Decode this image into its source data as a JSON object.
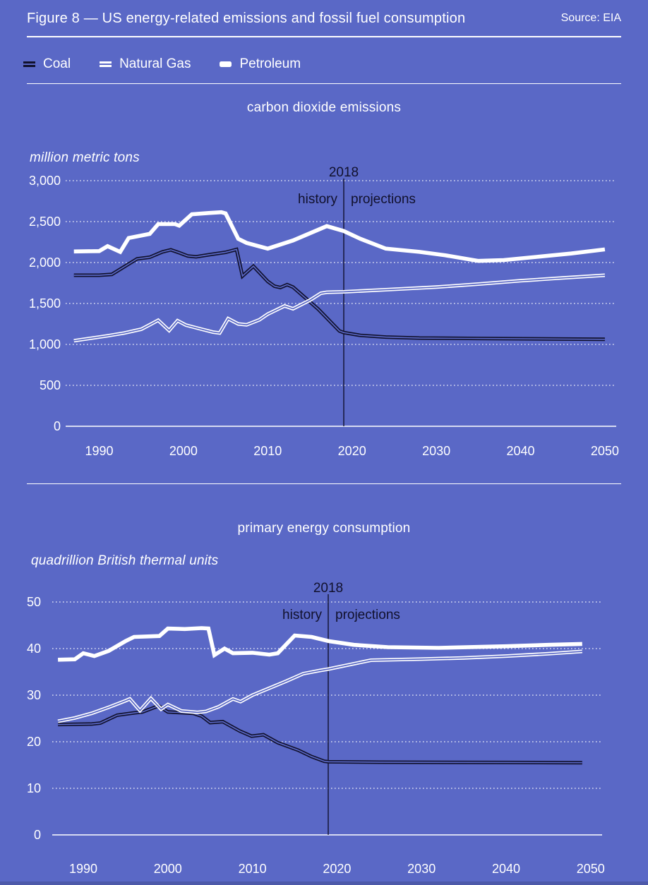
{
  "header": {
    "title": "Figure 8 — US energy-related emissions and fossil fuel consumption",
    "source": "Source: EIA"
  },
  "legend": {
    "items": [
      {
        "label": "Coal",
        "style": "dark-double-line"
      },
      {
        "label": "Natural Gas",
        "style": "white-double-line"
      },
      {
        "label": "Petroleum",
        "style": "white-thick-line"
      }
    ]
  },
  "colors": {
    "background": "#5a68c6",
    "dark_navy": "#11112d",
    "white": "#ffffff",
    "bottom_band": "#4d59a9"
  },
  "annotations": {
    "divider_year_label": "2018",
    "history_label": "history",
    "projections_label": "projections",
    "divider_year_position": 2019
  },
  "chart_data": [
    {
      "type": "line",
      "title": "carbon dioxide emissions",
      "unit_label": "million metric tons",
      "ylim": [
        0,
        3000
      ],
      "yticks": [
        {
          "v": 0,
          "label": "0"
        },
        {
          "v": 500,
          "label": "500"
        },
        {
          "v": 1000,
          "label": "1,000"
        },
        {
          "v": 1500,
          "label": "1,500"
        },
        {
          "v": 2000,
          "label": "2,000"
        },
        {
          "v": 2500,
          "label": "2,500"
        },
        {
          "v": 3000,
          "label": "3,000"
        }
      ],
      "xticks": [
        1990,
        2000,
        2010,
        2020,
        2030,
        2040,
        2050
      ],
      "xrange": [
        1987,
        2050
      ],
      "grid": "dotted",
      "legend_position": "top-of-figure",
      "series": [
        {
          "name": "Coal",
          "style": "dark-double-line",
          "points": [
            [
              1987,
              1845
            ],
            [
              1990,
              1845
            ],
            [
              1991.5,
              1855
            ],
            [
              1993,
              1950
            ],
            [
              1994.5,
              2045
            ],
            [
              1996,
              2065
            ],
            [
              1997.5,
              2130
            ],
            [
              1998.5,
              2155
            ],
            [
              1999.5,
              2120
            ],
            [
              2000.5,
              2080
            ],
            [
              2001.5,
              2070
            ],
            [
              2003,
              2095
            ],
            [
              2005,
              2125
            ],
            [
              2006.3,
              2160
            ],
            [
              2007,
              1835
            ],
            [
              2008.3,
              1955
            ],
            [
              2010,
              1770
            ],
            [
              2010.8,
              1710
            ],
            [
              2011.5,
              1695
            ],
            [
              2012.3,
              1730
            ],
            [
              2013,
              1700
            ],
            [
              2016,
              1430
            ],
            [
              2018.5,
              1165
            ],
            [
              2019,
              1145
            ],
            [
              2021,
              1110
            ],
            [
              2024,
              1090
            ],
            [
              2028,
              1078
            ],
            [
              2035,
              1072
            ],
            [
              2050,
              1062
            ]
          ]
        },
        {
          "name": "Natural Gas",
          "style": "white-double-line",
          "points": [
            [
              1987,
              1045
            ],
            [
              1989,
              1075
            ],
            [
              1991,
              1105
            ],
            [
              1993,
              1140
            ],
            [
              1995,
              1185
            ],
            [
              1996,
              1240
            ],
            [
              1997,
              1295
            ],
            [
              1998.3,
              1170
            ],
            [
              1999.3,
              1290
            ],
            [
              2000.3,
              1235
            ],
            [
              2002,
              1190
            ],
            [
              2003.5,
              1150
            ],
            [
              2004.3,
              1140
            ],
            [
              2005.3,
              1315
            ],
            [
              2006.5,
              1250
            ],
            [
              2007.5,
              1240
            ],
            [
              2009,
              1300
            ],
            [
              2010,
              1370
            ],
            [
              2012,
              1470
            ],
            [
              2013,
              1435
            ],
            [
              2015,
              1540
            ],
            [
              2016.3,
              1625
            ],
            [
              2017,
              1637
            ],
            [
              2019,
              1642
            ],
            [
              2024,
              1668
            ],
            [
              2030,
              1700
            ],
            [
              2035,
              1737
            ],
            [
              2040,
              1778
            ],
            [
              2045,
              1812
            ],
            [
              2050,
              1845
            ]
          ]
        },
        {
          "name": "Petroleum",
          "style": "white-thick-line",
          "points": [
            [
              1987,
              2135
            ],
            [
              1990,
              2140
            ],
            [
              1991,
              2200
            ],
            [
              1992.5,
              2130
            ],
            [
              1993.5,
              2300
            ],
            [
              1995,
              2330
            ],
            [
              1996,
              2350
            ],
            [
              1997,
              2470
            ],
            [
              1999,
              2470
            ],
            [
              1999.5,
              2450
            ],
            [
              2001,
              2590
            ],
            [
              2003,
              2605
            ],
            [
              2004.5,
              2615
            ],
            [
              2005,
              2600
            ],
            [
              2006.5,
              2290
            ],
            [
              2007.5,
              2240
            ],
            [
              2010,
              2170
            ],
            [
              2013,
              2270
            ],
            [
              2017,
              2445
            ],
            [
              2019,
              2385
            ],
            [
              2021,
              2290
            ],
            [
              2024,
              2170
            ],
            [
              2028,
              2130
            ],
            [
              2031,
              2090
            ],
            [
              2035,
              2020
            ],
            [
              2038,
              2030
            ],
            [
              2042,
              2070
            ],
            [
              2046,
              2110
            ],
            [
              2050,
              2160
            ]
          ]
        }
      ]
    },
    {
      "type": "line",
      "title": "primary energy consumption",
      "unit_label": "quadrillion British thermal units",
      "ylim": [
        0,
        50
      ],
      "yticks": [
        {
          "v": 0,
          "label": "0"
        },
        {
          "v": 10,
          "label": "10"
        },
        {
          "v": 20,
          "label": "20"
        },
        {
          "v": 30,
          "label": "30"
        },
        {
          "v": 40,
          "label": "40"
        },
        {
          "v": 50,
          "label": "50"
        }
      ],
      "xticks": [
        1990,
        2000,
        2010,
        2020,
        2030,
        2040,
        2050
      ],
      "xrange": [
        1987,
        2049
      ],
      "grid": "dotted",
      "legend_position": "top-of-figure",
      "series": [
        {
          "name": "Coal",
          "style": "dark-double-line",
          "points": [
            [
              1987,
              23.7
            ],
            [
              1991,
              23.8
            ],
            [
              1992,
              24.0
            ],
            [
              1994,
              25.7
            ],
            [
              1996,
              26.2
            ],
            [
              1997,
              26.4
            ],
            [
              1998.9,
              27.7
            ],
            [
              2000,
              26.4
            ],
            [
              2003,
              26.1
            ],
            [
              2004,
              25.5
            ],
            [
              2005,
              24.1
            ],
            [
              2006.5,
              24.3
            ],
            [
              2008.5,
              22.3
            ],
            [
              2009.9,
              21.2
            ],
            [
              2011.3,
              21.5
            ],
            [
              2013,
              19.8
            ],
            [
              2015.4,
              18.2
            ],
            [
              2017,
              16.8
            ],
            [
              2018.5,
              15.8
            ],
            [
              2019,
              15.7
            ],
            [
              2025,
              15.6
            ],
            [
              2040,
              15.55
            ],
            [
              2049,
              15.5
            ]
          ]
        },
        {
          "name": "Natural Gas",
          "style": "white-double-line",
          "points": [
            [
              1987,
              24.4
            ],
            [
              1989,
              25.1
            ],
            [
              1991,
              26.1
            ],
            [
              1993,
              27.4
            ],
            [
              1995,
              28.8
            ],
            [
              1995.5,
              29.2
            ],
            [
              1996.7,
              26.7
            ],
            [
              1998,
              29.3
            ],
            [
              1999.2,
              27.0
            ],
            [
              2000,
              28.0
            ],
            [
              2001.6,
              26.6
            ],
            [
              2003.5,
              26.3
            ],
            [
              2004.5,
              26.5
            ],
            [
              2006,
              27.5
            ],
            [
              2007.7,
              29.2
            ],
            [
              2008.6,
              28.6
            ],
            [
              2010,
              30.0
            ],
            [
              2012,
              31.5
            ],
            [
              2014,
              33.0
            ],
            [
              2016,
              34.6
            ],
            [
              2018,
              35.3
            ],
            [
              2019,
              35.6
            ],
            [
              2024,
              37.5
            ],
            [
              2030,
              37.75
            ],
            [
              2035,
              38.0
            ],
            [
              2040,
              38.4
            ],
            [
              2045,
              38.9
            ],
            [
              2049,
              39.4
            ]
          ]
        },
        {
          "name": "Petroleum",
          "style": "white-thick-line",
          "points": [
            [
              1987,
              37.6
            ],
            [
              1989,
              37.7
            ],
            [
              1990,
              39.0
            ],
            [
              1991.3,
              38.4
            ],
            [
              1993,
              39.5
            ],
            [
              1995,
              41.6
            ],
            [
              1996,
              42.5
            ],
            [
              1999,
              42.7
            ],
            [
              2000,
              44.3
            ],
            [
              2002,
              44.2
            ],
            [
              2004,
              44.4
            ],
            [
              2004.8,
              44.3
            ],
            [
              2005.5,
              38.6
            ],
            [
              2006.7,
              40.0
            ],
            [
              2007.7,
              39.0
            ],
            [
              2010,
              39.1
            ],
            [
              2012,
              38.7
            ],
            [
              2013,
              39.0
            ],
            [
              2015,
              42.8
            ],
            [
              2017,
              42.5
            ],
            [
              2019,
              41.6
            ],
            [
              2022,
              40.8
            ],
            [
              2026,
              40.3
            ],
            [
              2032,
              40.15
            ],
            [
              2040,
              40.5
            ],
            [
              2045,
              40.8
            ],
            [
              2049,
              41.0
            ]
          ]
        }
      ]
    }
  ]
}
